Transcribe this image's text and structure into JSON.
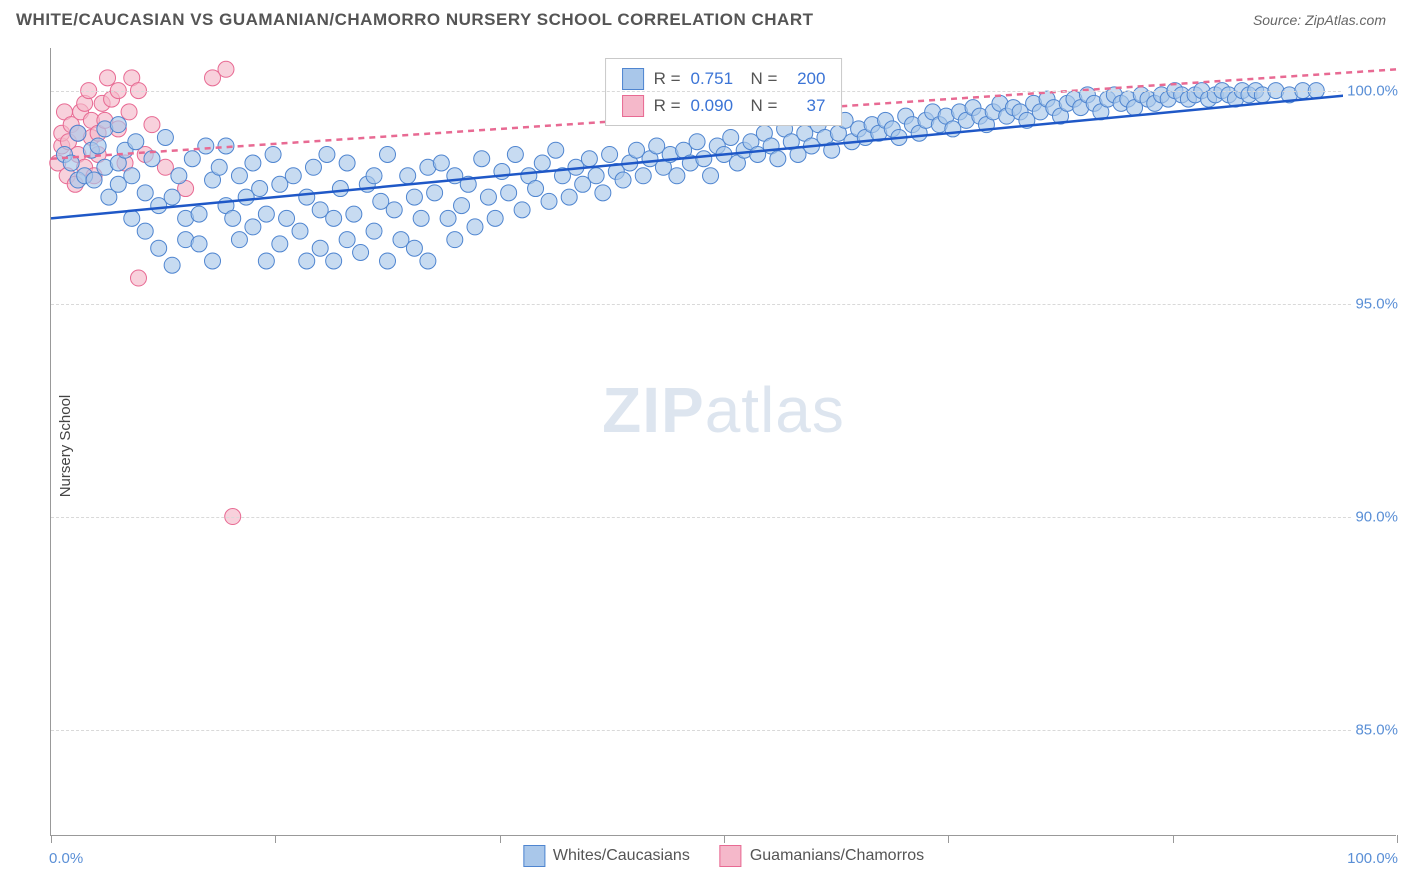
{
  "header": {
    "title": "WHITE/CAUCASIAN VS GUAMANIAN/CHAMORRO NURSERY SCHOOL CORRELATION CHART",
    "source": "Source: ZipAtlas.com"
  },
  "axes": {
    "y_title": "Nursery School",
    "x_min_label": "0.0%",
    "x_max_label": "100.0%",
    "x_min": 0,
    "x_max": 100,
    "y_min": 82.5,
    "y_max": 101.0,
    "y_ticks": [
      85.0,
      90.0,
      95.0,
      100.0
    ],
    "y_tick_labels": [
      "85.0%",
      "90.0%",
      "95.0%",
      "100.0%"
    ],
    "x_ticks": [
      0,
      16.67,
      33.33,
      50,
      66.67,
      83.33,
      100
    ],
    "grid_color": "#d9d9d9",
    "axis_color": "#999999",
    "tick_label_color": "#5a8fd6"
  },
  "watermark": {
    "text_a": "ZIP",
    "text_b": "atlas"
  },
  "series": [
    {
      "name": "Whites/Caucasians",
      "fill": "#a9c7ea",
      "stroke": "#4f85d0",
      "line_color": "#1f58c7",
      "line_solid": true,
      "R": "0.751",
      "N": "200",
      "trend": {
        "x1": 0,
        "y1": 97.0,
        "x2": 100,
        "y2": 100.0
      },
      "marker_r": 8,
      "points": [
        [
          1,
          98.5
        ],
        [
          1.5,
          98.3
        ],
        [
          2,
          97.9
        ],
        [
          2,
          99.0
        ],
        [
          2.5,
          98.0
        ],
        [
          3,
          98.6
        ],
        [
          3.2,
          97.9
        ],
        [
          3.5,
          98.7
        ],
        [
          4,
          98.2
        ],
        [
          4,
          99.1
        ],
        [
          4.3,
          97.5
        ],
        [
          5,
          98.3
        ],
        [
          5,
          97.8
        ],
        [
          5,
          99.2
        ],
        [
          5.5,
          98.6
        ],
        [
          6,
          98.0
        ],
        [
          6,
          97.0
        ],
        [
          6.3,
          98.8
        ],
        [
          7,
          97.6
        ],
        [
          7,
          96.7
        ],
        [
          7.5,
          98.4
        ],
        [
          8,
          97.3
        ],
        [
          8,
          96.3
        ],
        [
          8.5,
          98.9
        ],
        [
          9,
          97.5
        ],
        [
          9,
          95.9
        ],
        [
          9.5,
          98.0
        ],
        [
          10,
          97.0
        ],
        [
          10,
          96.5
        ],
        [
          10.5,
          98.4
        ],
        [
          11,
          97.1
        ],
        [
          11,
          96.4
        ],
        [
          11.5,
          98.7
        ],
        [
          12,
          97.9
        ],
        [
          12,
          96.0
        ],
        [
          12.5,
          98.2
        ],
        [
          13,
          97.3
        ],
        [
          13,
          98.7
        ],
        [
          13.5,
          97.0
        ],
        [
          14,
          98.0
        ],
        [
          14,
          96.5
        ],
        [
          14.5,
          97.5
        ],
        [
          15,
          96.8
        ],
        [
          15,
          98.3
        ],
        [
          15.5,
          97.7
        ],
        [
          16,
          96.0
        ],
        [
          16,
          97.1
        ],
        [
          16.5,
          98.5
        ],
        [
          17,
          97.8
        ],
        [
          17,
          96.4
        ],
        [
          17.5,
          97.0
        ],
        [
          18,
          98.0
        ],
        [
          18.5,
          96.7
        ],
        [
          19,
          97.5
        ],
        [
          19,
          96.0
        ],
        [
          19.5,
          98.2
        ],
        [
          20,
          97.2
        ],
        [
          20,
          96.3
        ],
        [
          20.5,
          98.5
        ],
        [
          21,
          97.0
        ],
        [
          21,
          96.0
        ],
        [
          21.5,
          97.7
        ],
        [
          22,
          98.3
        ],
        [
          22,
          96.5
        ],
        [
          22.5,
          97.1
        ],
        [
          23,
          96.2
        ],
        [
          23.5,
          97.8
        ],
        [
          24,
          98.0
        ],
        [
          24,
          96.7
        ],
        [
          24.5,
          97.4
        ],
        [
          25,
          96.0
        ],
        [
          25,
          98.5
        ],
        [
          25.5,
          97.2
        ],
        [
          26,
          96.5
        ],
        [
          26.5,
          98.0
        ],
        [
          27,
          97.5
        ],
        [
          27,
          96.3
        ],
        [
          27.5,
          97.0
        ],
        [
          28,
          98.2
        ],
        [
          28,
          96.0
        ],
        [
          28.5,
          97.6
        ],
        [
          29,
          98.3
        ],
        [
          29.5,
          97.0
        ],
        [
          30,
          96.5
        ],
        [
          30,
          98.0
        ],
        [
          30.5,
          97.3
        ],
        [
          31,
          97.8
        ],
        [
          31.5,
          96.8
        ],
        [
          32,
          98.4
        ],
        [
          32.5,
          97.5
        ],
        [
          33,
          97.0
        ],
        [
          33.5,
          98.1
        ],
        [
          34,
          97.6
        ],
        [
          34.5,
          98.5
        ],
        [
          35,
          97.2
        ],
        [
          35.5,
          98.0
        ],
        [
          36,
          97.7
        ],
        [
          36.5,
          98.3
        ],
        [
          37,
          97.4
        ],
        [
          37.5,
          98.6
        ],
        [
          38,
          98.0
        ],
        [
          38.5,
          97.5
        ],
        [
          39,
          98.2
        ],
        [
          39.5,
          97.8
        ],
        [
          40,
          98.4
        ],
        [
          40.5,
          98.0
        ],
        [
          41,
          97.6
        ],
        [
          41.5,
          98.5
        ],
        [
          42,
          98.1
        ],
        [
          42.5,
          97.9
        ],
        [
          43,
          98.3
        ],
        [
          43.5,
          98.6
        ],
        [
          44,
          98.0
        ],
        [
          44.5,
          98.4
        ],
        [
          45,
          98.7
        ],
        [
          45.5,
          98.2
        ],
        [
          46,
          98.5
        ],
        [
          46.5,
          98.0
        ],
        [
          47,
          98.6
        ],
        [
          47.5,
          98.3
        ],
        [
          48,
          98.8
        ],
        [
          48.5,
          98.4
        ],
        [
          49,
          98.0
        ],
        [
          49.5,
          98.7
        ],
        [
          50,
          98.5
        ],
        [
          50.5,
          98.9
        ],
        [
          51,
          98.3
        ],
        [
          51.5,
          98.6
        ],
        [
          52,
          98.8
        ],
        [
          52.5,
          98.5
        ],
        [
          53,
          99.0
        ],
        [
          53.5,
          98.7
        ],
        [
          54,
          98.4
        ],
        [
          54.5,
          99.1
        ],
        [
          55,
          98.8
        ],
        [
          55.5,
          98.5
        ],
        [
          56,
          99.0
        ],
        [
          56.5,
          98.7
        ],
        [
          57,
          99.2
        ],
        [
          57.5,
          98.9
        ],
        [
          58,
          98.6
        ],
        [
          58.5,
          99.0
        ],
        [
          59,
          99.3
        ],
        [
          59.5,
          98.8
        ],
        [
          60,
          99.1
        ],
        [
          60.5,
          98.9
        ],
        [
          61,
          99.2
        ],
        [
          61.5,
          99.0
        ],
        [
          62,
          99.3
        ],
        [
          62.5,
          99.1
        ],
        [
          63,
          98.9
        ],
        [
          63.5,
          99.4
        ],
        [
          64,
          99.2
        ],
        [
          64.5,
          99.0
        ],
        [
          65,
          99.3
        ],
        [
          65.5,
          99.5
        ],
        [
          66,
          99.2
        ],
        [
          66.5,
          99.4
        ],
        [
          67,
          99.1
        ],
        [
          67.5,
          99.5
        ],
        [
          68,
          99.3
        ],
        [
          68.5,
          99.6
        ],
        [
          69,
          99.4
        ],
        [
          69.5,
          99.2
        ],
        [
          70,
          99.5
        ],
        [
          70.5,
          99.7
        ],
        [
          71,
          99.4
        ],
        [
          71.5,
          99.6
        ],
        [
          72,
          99.5
        ],
        [
          72.5,
          99.3
        ],
        [
          73,
          99.7
        ],
        [
          73.5,
          99.5
        ],
        [
          74,
          99.8
        ],
        [
          74.5,
          99.6
        ],
        [
          75,
          99.4
        ],
        [
          75.5,
          99.7
        ],
        [
          76,
          99.8
        ],
        [
          76.5,
          99.6
        ],
        [
          77,
          99.9
        ],
        [
          77.5,
          99.7
        ],
        [
          78,
          99.5
        ],
        [
          78.5,
          99.8
        ],
        [
          79,
          99.9
        ],
        [
          79.5,
          99.7
        ],
        [
          80,
          99.8
        ],
        [
          80.5,
          99.6
        ],
        [
          81,
          99.9
        ],
        [
          81.5,
          99.8
        ],
        [
          82,
          99.7
        ],
        [
          82.5,
          99.9
        ],
        [
          83,
          99.8
        ],
        [
          83.5,
          100.0
        ],
        [
          84,
          99.9
        ],
        [
          84.5,
          99.8
        ],
        [
          85,
          99.9
        ],
        [
          85.5,
          100.0
        ],
        [
          86,
          99.8
        ],
        [
          86.5,
          99.9
        ],
        [
          87,
          100.0
        ],
        [
          87.5,
          99.9
        ],
        [
          88,
          99.8
        ],
        [
          88.5,
          100.0
        ],
        [
          89,
          99.9
        ],
        [
          89.5,
          100.0
        ],
        [
          90,
          99.9
        ],
        [
          91,
          100.0
        ],
        [
          92,
          99.9
        ],
        [
          93,
          100.0
        ],
        [
          94,
          100.0
        ]
      ]
    },
    {
      "name": "Guamanians/Chamorros",
      "fill": "#f5b8ca",
      "stroke": "#e86a93",
      "line_color": "#e86a93",
      "line_solid": false,
      "R": "0.090",
      "N": "37",
      "trend": {
        "x1": 0,
        "y1": 98.4,
        "x2": 100,
        "y2": 100.5
      },
      "marker_r": 8,
      "points": [
        [
          0.5,
          98.3
        ],
        [
          0.8,
          98.7
        ],
        [
          0.8,
          99.0
        ],
        [
          1.0,
          99.5
        ],
        [
          1.2,
          98.0
        ],
        [
          1.3,
          98.8
        ],
        [
          1.5,
          99.2
        ],
        [
          1.8,
          97.8
        ],
        [
          2.0,
          98.5
        ],
        [
          2.0,
          99.0
        ],
        [
          2.2,
          99.5
        ],
        [
          2.5,
          98.2
        ],
        [
          2.5,
          99.7
        ],
        [
          2.8,
          100.0
        ],
        [
          3.0,
          98.9
        ],
        [
          3.0,
          99.3
        ],
        [
          3.2,
          98.0
        ],
        [
          3.5,
          99.0
        ],
        [
          3.5,
          98.5
        ],
        [
          3.8,
          99.7
        ],
        [
          4.0,
          99.3
        ],
        [
          4.2,
          100.3
        ],
        [
          4.5,
          99.8
        ],
        [
          5.0,
          100.0
        ],
        [
          5.0,
          99.1
        ],
        [
          5.5,
          98.3
        ],
        [
          5.8,
          99.5
        ],
        [
          6.0,
          100.3
        ],
        [
          6.5,
          100.0
        ],
        [
          7.0,
          98.5
        ],
        [
          7.5,
          99.2
        ],
        [
          8.5,
          98.2
        ],
        [
          10.0,
          97.7
        ],
        [
          6.5,
          95.6
        ],
        [
          12.0,
          100.3
        ],
        [
          13.0,
          100.5
        ],
        [
          13.5,
          90.0
        ]
      ]
    }
  ],
  "bottom_legend": [
    {
      "swatch_fill": "#a9c7ea",
      "swatch_stroke": "#4f85d0",
      "label": "Whites/Caucasians"
    },
    {
      "swatch_fill": "#f5b8ca",
      "swatch_stroke": "#e86a93",
      "label": "Guamanians/Chamorros"
    }
  ]
}
